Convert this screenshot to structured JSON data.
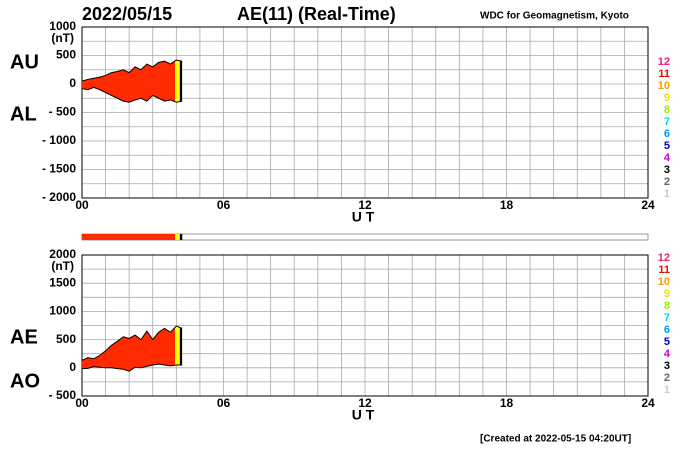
{
  "header": {
    "date": "2022/05/15",
    "title": "AE(11) (Real-Time)",
    "source": "WDC for Geomagnetism, Kyoto",
    "footer": "[Created at 2022-05-15 04:20UT]"
  },
  "station_legend": [
    {
      "label": "12",
      "color": "#e8207a"
    },
    {
      "label": "11",
      "color": "#e81000"
    },
    {
      "label": "10",
      "color": "#ff9900"
    },
    {
      "label": "9",
      "color": "#e8e800"
    },
    {
      "label": "8",
      "color": "#99ee00"
    },
    {
      "label": "7",
      "color": "#00dddd"
    },
    {
      "label": "6",
      "color": "#0099ff"
    },
    {
      "label": "5",
      "color": "#0000cc"
    },
    {
      "label": "4",
      "color": "#cc00cc"
    },
    {
      "label": "3",
      "color": "#000000"
    },
    {
      "label": "2",
      "color": "#666666"
    },
    {
      "label": "1",
      "color": "#cccccc"
    }
  ],
  "coverage": [
    {
      "start": 0,
      "end": 3.95,
      "color": "#ff2a00"
    },
    {
      "start": 3.95,
      "end": 4.15,
      "color": "#ffff00"
    },
    {
      "start": 4.15,
      "end": 4.25,
      "color": "#000000"
    }
  ],
  "chart_data": [
    {
      "type": "area-band",
      "unit": "(nT)",
      "xlabel": "U T",
      "grid": true,
      "grid_step": 250,
      "xgrid_step": 1,
      "x": [
        0,
        0.25,
        0.5,
        0.75,
        1,
        1.25,
        1.5,
        1.75,
        2,
        2.25,
        2.5,
        2.75,
        3,
        3.25,
        3.5,
        3.75,
        4,
        4.25
      ],
      "series": [
        {
          "name": "AU",
          "values": [
            50,
            80,
            100,
            120,
            150,
            200,
            220,
            250,
            200,
            300,
            250,
            350,
            300,
            380,
            400,
            350,
            420,
            400
          ]
        },
        {
          "name": "AL",
          "values": [
            -80,
            -100,
            -60,
            -100,
            -150,
            -200,
            -250,
            -300,
            -320,
            -280,
            -250,
            -300,
            -200,
            -250,
            -300,
            -280,
            -320,
            -300
          ]
        }
      ],
      "xlim": [
        0,
        24
      ],
      "xticks": [
        {
          "value": 0,
          "label": "00"
        },
        {
          "value": 6,
          "label": "06"
        },
        {
          "value": 12,
          "label": "12"
        },
        {
          "value": 18,
          "label": "18"
        },
        {
          "value": 24,
          "label": "24"
        }
      ],
      "ylim": [
        -2000,
        1000
      ],
      "yticks": [
        1000,
        500,
        0,
        {
          "value": -500,
          "label": "- 500"
        },
        {
          "value": -1000,
          "label": "- 1000"
        },
        {
          "value": -1500,
          "label": "- 1500"
        },
        {
          "value": -2000,
          "label": "- 2000"
        }
      ]
    },
    {
      "type": "area-band",
      "unit": "(nT)",
      "xlabel": "U T",
      "grid": true,
      "grid_step": 250,
      "xgrid_step": 1,
      "x": [
        0,
        0.25,
        0.5,
        0.75,
        1,
        1.25,
        1.5,
        1.75,
        2,
        2.25,
        2.5,
        2.75,
        3,
        3.25,
        3.5,
        3.75,
        4,
        4.25
      ],
      "series": [
        {
          "name": "AE",
          "values": [
            130,
            180,
            160,
            220,
            300,
            400,
            470,
            550,
            520,
            580,
            500,
            650,
            500,
            630,
            700,
            630,
            740,
            700
          ]
        },
        {
          "name": "AO",
          "values": [
            -15,
            -10,
            20,
            10,
            0,
            0,
            -15,
            -25,
            -60,
            10,
            0,
            25,
            50,
            65,
            50,
            35,
            50,
            50
          ]
        }
      ],
      "xlim": [
        0,
        24
      ],
      "xticks": [
        {
          "value": 0,
          "label": "00"
        },
        {
          "value": 6,
          "label": "06"
        },
        {
          "value": 12,
          "label": "12"
        },
        {
          "value": 18,
          "label": "18"
        },
        {
          "value": 24,
          "label": "24"
        }
      ],
      "ylim": [
        -500,
        2000
      ],
      "yticks": [
        2000,
        1500,
        1000,
        500,
        0,
        {
          "value": -500,
          "label": "- 500"
        }
      ]
    }
  ]
}
